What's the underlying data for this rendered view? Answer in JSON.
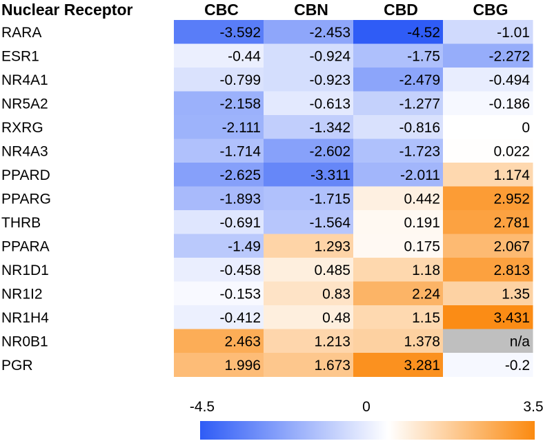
{
  "chart_data": {
    "type": "heatmap",
    "row_header": "Nuclear Receptor",
    "columns": [
      "CBC",
      "CBN",
      "CBD",
      "CBG"
    ],
    "rows": [
      {
        "label": "RARA",
        "values": [
          "-3.592",
          "-2.453",
          "-4.52",
          "-1.01"
        ]
      },
      {
        "label": "ESR1",
        "values": [
          "-0.44",
          "-0.924",
          "-1.75",
          "-2.272"
        ]
      },
      {
        "label": "NR4A1",
        "values": [
          "-0.799",
          "-0.923",
          "-2.479",
          "-0.494"
        ]
      },
      {
        "label": "NR5A2",
        "values": [
          "-2.158",
          "-0.613",
          "-1.277",
          "-0.186"
        ]
      },
      {
        "label": "RXRG",
        "values": [
          "-2.111",
          "-1.342",
          "-0.816",
          "0"
        ]
      },
      {
        "label": "NR4A3",
        "values": [
          "-1.714",
          "-2.602",
          "-1.723",
          "0.022"
        ]
      },
      {
        "label": "PPARD",
        "values": [
          "-2.625",
          "-3.311",
          "-2.011",
          "1.174"
        ]
      },
      {
        "label": "PPARG",
        "values": [
          "-1.893",
          "-1.715",
          "0.442",
          "2.952"
        ]
      },
      {
        "label": "THRB",
        "values": [
          "-0.691",
          "-1.564",
          "0.191",
          "2.781"
        ]
      },
      {
        "label": "PPARA",
        "values": [
          "-1.49",
          "1.293",
          "0.175",
          "2.067"
        ]
      },
      {
        "label": "NR1D1",
        "values": [
          "-0.458",
          "0.485",
          "1.18",
          "2.813"
        ]
      },
      {
        "label": "NR1I2",
        "values": [
          "-0.153",
          "0.83",
          "2.24",
          "1.35"
        ]
      },
      {
        "label": "NR1H4",
        "values": [
          "-0.412",
          "0.48",
          "1.15",
          "3.431"
        ]
      },
      {
        "label": "NR0B1",
        "values": [
          "2.463",
          "1.213",
          "1.378",
          "n/a"
        ]
      },
      {
        "label": "PGR",
        "values": [
          "1.996",
          "1.673",
          "3.281",
          "-0.2"
        ]
      }
    ],
    "colorbar": {
      "min": -4.5,
      "mid": 0,
      "max": 3.5,
      "tick_labels": [
        "-4.5",
        "0",
        "3.5"
      ]
    },
    "colors": {
      "negative": "#2f5cf6",
      "neutral": "#ffffff",
      "positive": "#fb8a10",
      "missing": "#bfbfbf"
    }
  }
}
